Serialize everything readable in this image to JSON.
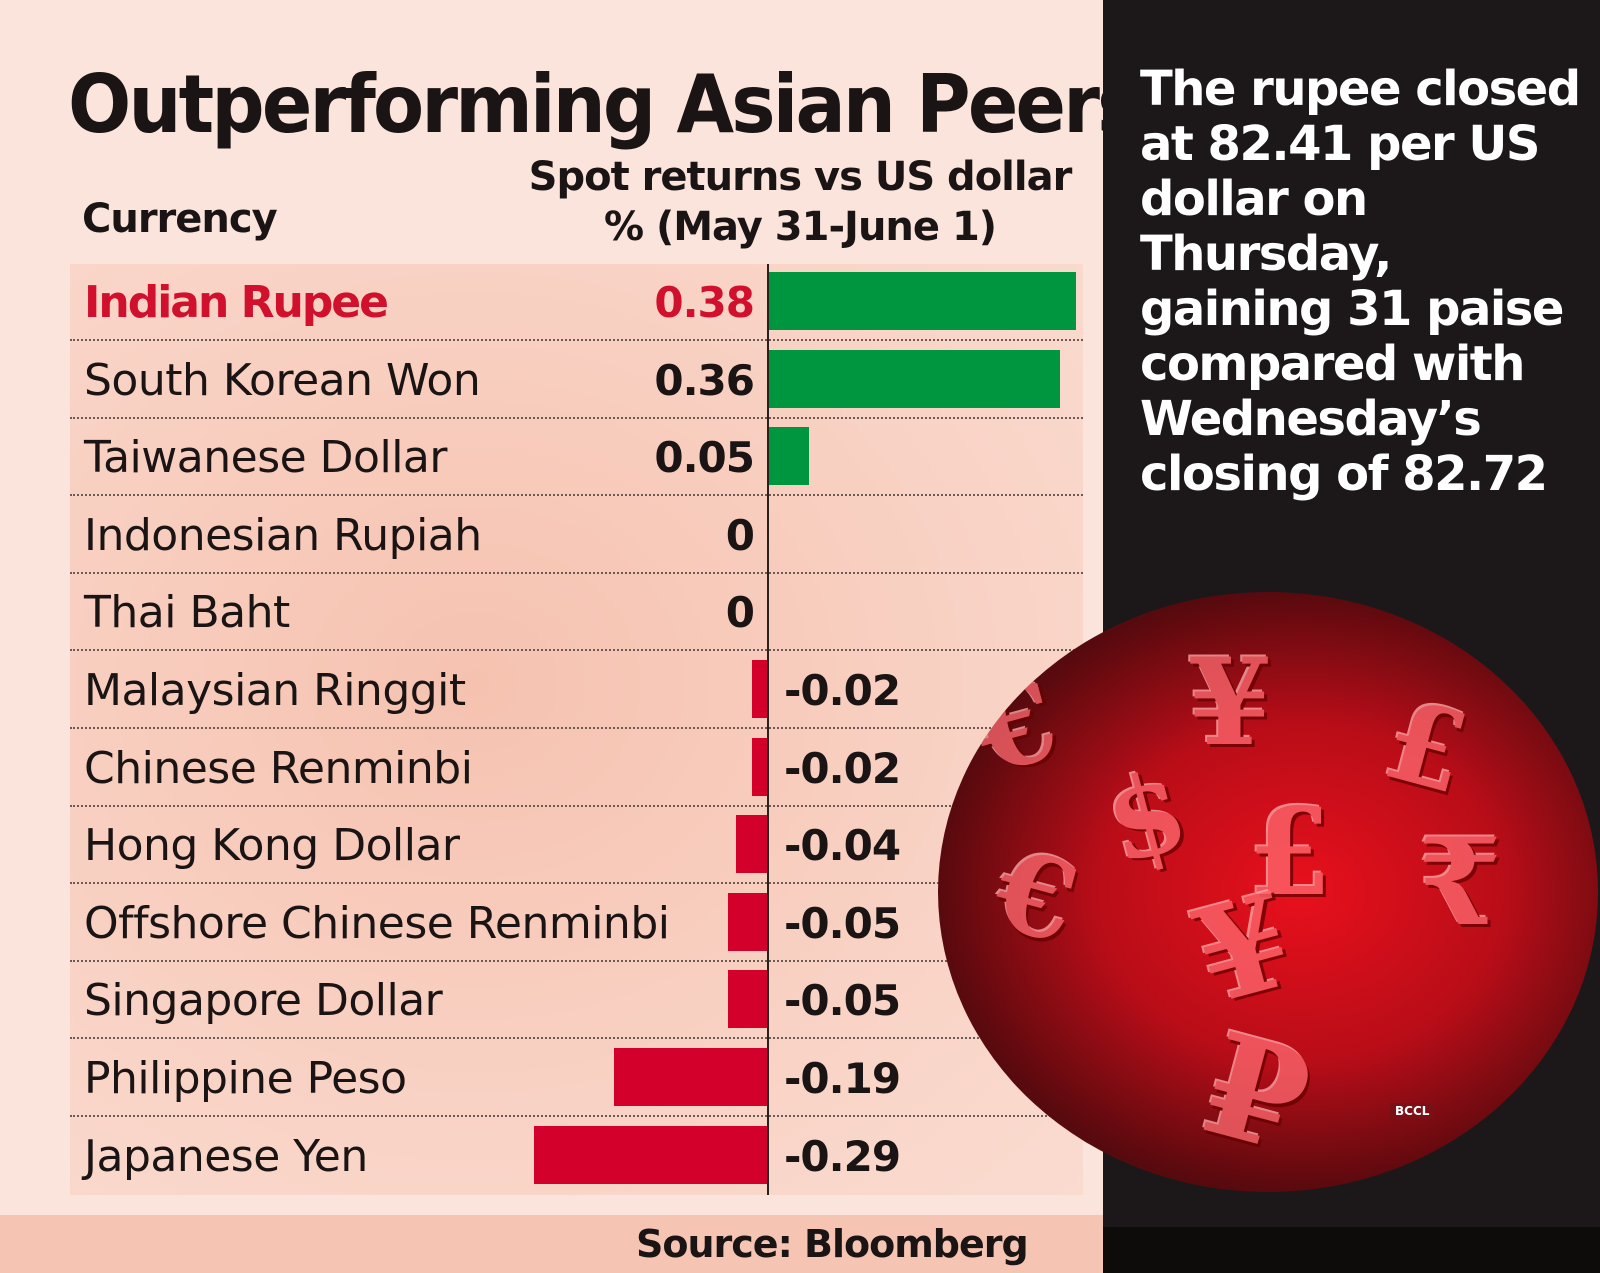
{
  "chart_data": {
    "type": "bar",
    "orientation": "horizontal",
    "title": "Outperforming Asian Peers",
    "category_header": "Currency",
    "value_header": [
      "Spot returns vs US dollar",
      "% (May 31-June 1)"
    ],
    "categories": [
      "Indian Rupee",
      "South Korean Won",
      "Taiwanese Dollar",
      "Indonesian Rupiah",
      "Thai Baht",
      "Malaysian Ringgit",
      "Chinese Renminbi",
      "Hong Kong Dollar",
      "Offshore Chinese Renminbi",
      "Singapore Dollar",
      "Philippine Peso",
      "Japanese Yen"
    ],
    "values": [
      0.38,
      0.36,
      0.05,
      0,
      0,
      -0.02,
      -0.02,
      -0.04,
      -0.05,
      -0.05,
      -0.19,
      -0.29
    ],
    "labels": [
      "0.38",
      "0.36",
      "0.05",
      "0",
      "0",
      "-0.02",
      "-0.02",
      "-0.04",
      "-0.05",
      "-0.05",
      "-0.19",
      "-0.29"
    ],
    "highlight": "Indian Rupee",
    "source": "Source: Bloomberg",
    "colors": {
      "positive": "#00963f",
      "negative": "#d2002a",
      "highlight_text": "#d0102c"
    }
  },
  "note": "The rupee closed at 82.41 per US dollar on Thursday, gaining 31 paise compared with Wednesday’s closing of 82.72",
  "photo": {
    "credit": "BCCL",
    "glyphs": [
      "€",
      "¥",
      "£",
      "$",
      "£",
      "€",
      "¥",
      "₹",
      "₽"
    ]
  }
}
